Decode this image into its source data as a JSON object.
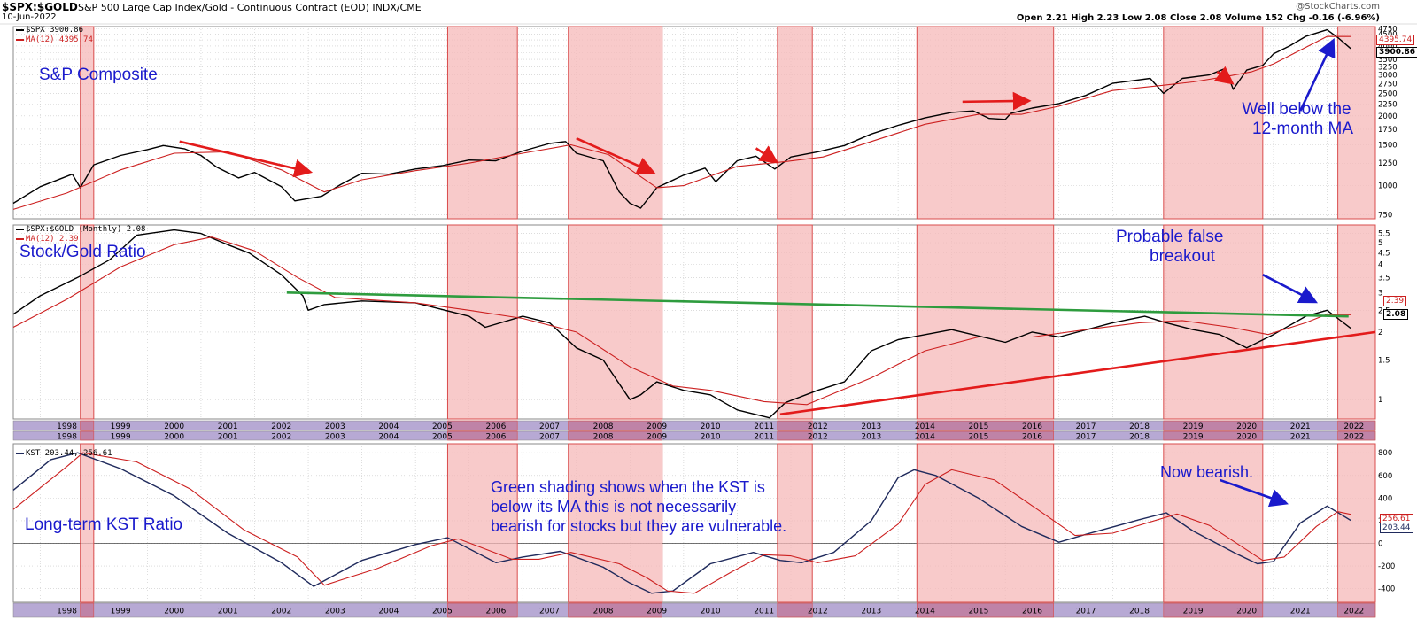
{
  "header": {
    "symbol": "$SPX:$GOLD",
    "description": "S&P 500 Large Cap Index/Gold - Continuous Contract (EOD)",
    "exchange": "INDX/CME",
    "date": "10-Jun-2022",
    "watermark": "@StockCharts.com",
    "quote": "Open 2.21  High 2.23  Low 2.08  Close 2.08  Volume 152  Chg -0.16 (-6.96%)"
  },
  "colors": {
    "shade": "#f6b8b8",
    "shade_border": "#d94c4c",
    "price": "#000000",
    "ma": "#cc1f1f",
    "kst": "#1f2a5c",
    "trend_green": "#2e9c3e",
    "trend_red": "#e31b1b",
    "arrow_red": "#e31b1b",
    "arrow_blue": "#1a1acc",
    "annotation_text": "#1a1acc",
    "axis_band": "#b7a9d4"
  },
  "annotations": {
    "sp_title": "S&P Composite",
    "ratio_title": "Stock/Gold Ratio",
    "kst_title": "Long-term KST Ratio",
    "well_below": [
      "Well below the",
      "12-month MA"
    ],
    "false_breakout": [
      "Probable false",
      "breakout"
    ],
    "green_shading": [
      "Green shading shows when the KST is",
      "below its MA this is not necessarily",
      "bearish for stocks but they are vulnerable."
    ],
    "now_bearish": "Now bearish."
  },
  "legends": {
    "p1_line": "$SPX 3900.86",
    "p1_ma": "MA(12) 4395.74",
    "p2_line": "$SPX:$GOLD (Monthly) 2.08",
    "p2_ma": "MA(12) 2.39",
    "p3_line": "KST 203.44, 256.61"
  },
  "value_tags": {
    "p1_ma": "4395.74",
    "p1_last": "3900.86",
    "p2_ma": "2.39",
    "p2_last": "2.08",
    "p3_ma": "256.61",
    "p3_last": "203.44"
  },
  "chart_data": [
    {
      "type": "line",
      "panel": "S&P Composite",
      "scale": "log",
      "ylim": [
        720,
        4850
      ],
      "yticks": [
        750,
        1000,
        1250,
        1500,
        1750,
        2000,
        2250,
        2500,
        2750,
        3000,
        3250,
        3500,
        3750,
        4000,
        4250,
        4500,
        4750
      ],
      "xlim": [
        1997.5,
        2022.9
      ],
      "series": [
        {
          "name": "$SPX",
          "x": [
            1997.5,
            1998.0,
            1998.6,
            1998.75,
            1999.0,
            1999.5,
            2000.0,
            2000.3,
            2000.7,
            2001.0,
            2001.3,
            2001.7,
            2002.0,
            2002.5,
            2002.75,
            2003.0,
            2003.25,
            2003.6,
            2004.0,
            2004.5,
            2005.0,
            2005.5,
            2006.0,
            2006.5,
            2007.0,
            2007.5,
            2007.8,
            2008.0,
            2008.5,
            2008.8,
            2009.0,
            2009.2,
            2009.5,
            2010.0,
            2010.4,
            2010.6,
            2011.0,
            2011.35,
            2011.7,
            2012.0,
            2012.5,
            2013.0,
            2013.5,
            2014.0,
            2014.5,
            2015.0,
            2015.4,
            2015.7,
            2016.0,
            2016.1,
            2016.5,
            2017.0,
            2017.5,
            2018.0,
            2018.7,
            2018.95,
            2019.3,
            2019.8,
            2020.1,
            2020.25,
            2020.5,
            2020.8,
            2021.0,
            2021.3,
            2021.6,
            2022.0,
            2022.2,
            2022.44
          ],
          "values": [
            840,
            990,
            1120,
            980,
            1230,
            1350,
            1430,
            1490,
            1440,
            1350,
            1200,
            1080,
            1140,
            990,
            860,
            880,
            900,
            1010,
            1130,
            1120,
            1180,
            1220,
            1290,
            1280,
            1410,
            1520,
            1550,
            1380,
            1280,
            940,
            840,
            800,
            980,
            1110,
            1190,
            1040,
            1280,
            1340,
            1180,
            1330,
            1400,
            1490,
            1670,
            1820,
            1960,
            2070,
            2100,
            1950,
            1930,
            2050,
            2160,
            2260,
            2450,
            2760,
            2900,
            2500,
            2900,
            3000,
            3200,
            2600,
            3150,
            3300,
            3700,
            4000,
            4400,
            4700,
            4350,
            3900
          ]
        },
        {
          "name": "MA(12)",
          "x": [
            1997.5,
            1998.5,
            1999.5,
            2000.5,
            2001.5,
            2002.5,
            2003.3,
            2004.0,
            2005.0,
            2006.0,
            2007.0,
            2007.9,
            2008.6,
            2009.5,
            2010.0,
            2011.0,
            2011.9,
            2012.6,
            2013.5,
            2014.5,
            2015.5,
            2016.3,
            2017.0,
            2018.0,
            2018.9,
            2019.5,
            2020.1,
            2020.6,
            2021.0,
            2022.0,
            2022.44
          ],
          "values": [
            790,
            930,
            1170,
            1380,
            1400,
            1170,
            940,
            1060,
            1160,
            1250,
            1380,
            1500,
            1360,
            980,
            1000,
            1210,
            1270,
            1330,
            1550,
            1840,
            2030,
            2030,
            2200,
            2570,
            2700,
            2800,
            2950,
            3100,
            3350,
            4400,
            4395.74
          ]
        }
      ]
    },
    {
      "type": "line",
      "panel": "Stock/Gold Ratio",
      "scale": "log",
      "ylim": [
        0.82,
        6.0
      ],
      "yticks": [
        1.0,
        1.5,
        2.0,
        2.5,
        3.0,
        3.5,
        4.0,
        4.5,
        5.0,
        5.5
      ],
      "xlim": [
        1997.5,
        2022.9
      ],
      "series": [
        {
          "name": "$SPX:$GOLD (Monthly)",
          "x": [
            1997.5,
            1998.0,
            1998.7,
            1999.3,
            1999.8,
            2000.5,
            2001.0,
            2001.5,
            2001.9,
            2002.5,
            2002.9,
            2003.0,
            2003.3,
            2004.0,
            2005.0,
            2006.0,
            2006.3,
            2007.0,
            2007.5,
            2008.0,
            2008.5,
            2009.0,
            2009.2,
            2009.5,
            2010.0,
            2010.5,
            2011.0,
            2011.6,
            2011.9,
            2012.5,
            2013.0,
            2013.5,
            2014.0,
            2015.0,
            2016.0,
            2016.5,
            2017.0,
            2018.0,
            2018.6,
            2019.0,
            2019.5,
            2020.0,
            2020.5,
            2021.0,
            2021.6,
            2022.0,
            2022.2,
            2022.44
          ],
          "values": [
            2.4,
            2.9,
            3.5,
            4.2,
            5.4,
            5.7,
            5.5,
            4.9,
            4.5,
            3.6,
            2.9,
            2.5,
            2.65,
            2.75,
            2.7,
            2.35,
            2.1,
            2.35,
            2.2,
            1.7,
            1.5,
            1.0,
            1.05,
            1.2,
            1.1,
            1.05,
            0.9,
            0.83,
            0.97,
            1.1,
            1.2,
            1.65,
            1.85,
            2.05,
            1.8,
            2.0,
            1.9,
            2.2,
            2.35,
            2.2,
            2.05,
            1.95,
            1.7,
            1.95,
            2.35,
            2.5,
            2.3,
            2.08
          ]
        },
        {
          "name": "MA(12)",
          "x": [
            1997.5,
            1998.5,
            1999.5,
            2000.5,
            2001.2,
            2002.0,
            2002.8,
            2003.5,
            2005.0,
            2006.0,
            2007.0,
            2008.0,
            2009.0,
            2009.8,
            2010.5,
            2011.5,
            2012.3,
            2013.5,
            2014.5,
            2015.5,
            2016.5,
            2017.5,
            2018.5,
            2019.3,
            2020.2,
            2020.9,
            2021.6,
            2022.0,
            2022.44
          ],
          "values": [
            2.1,
            2.8,
            3.9,
            4.9,
            5.3,
            4.6,
            3.5,
            2.85,
            2.7,
            2.5,
            2.3,
            2.0,
            1.4,
            1.15,
            1.1,
            0.98,
            0.95,
            1.25,
            1.65,
            1.9,
            1.9,
            2.05,
            2.2,
            2.25,
            2.1,
            1.95,
            2.2,
            2.4,
            2.39
          ]
        }
      ],
      "trendlines": [
        {
          "name": "green",
          "x": [
            2002.6,
            2022.4
          ],
          "values": [
            3.0,
            2.35
          ]
        },
        {
          "name": "red",
          "x": [
            2011.8,
            2022.9
          ],
          "values": [
            0.86,
            2.0
          ]
        }
      ]
    },
    {
      "type": "line",
      "panel": "Long-term KST Ratio",
      "scale": "linear",
      "ylim": [
        -520,
        880
      ],
      "yticks": [
        -400,
        -200,
        0,
        200,
        400,
        600,
        800
      ],
      "xlim": [
        1997.5,
        2022.9
      ],
      "series": [
        {
          "name": "KST",
          "x": [
            1997.5,
            1998.2,
            1998.7,
            1999.5,
            2000.5,
            2001.5,
            2002.5,
            2003.1,
            2004.0,
            2005.0,
            2005.6,
            2006.5,
            2007.0,
            2007.7,
            2008.5,
            2009.0,
            2009.4,
            2009.8,
            2010.5,
            2011.3,
            2011.8,
            2012.2,
            2012.8,
            2013.5,
            2014.0,
            2014.3,
            2014.7,
            2015.5,
            2016.3,
            2017.0,
            2017.5,
            2018.5,
            2019.0,
            2019.5,
            2020.3,
            2020.7,
            2021.0,
            2021.5,
            2022.0,
            2022.44
          ],
          "values": [
            470,
            740,
            800,
            660,
            420,
            90,
            -170,
            -380,
            -150,
            -10,
            50,
            -170,
            -120,
            -70,
            -210,
            -350,
            -440,
            -420,
            -180,
            -80,
            -150,
            -170,
            -80,
            200,
            580,
            650,
            600,
            400,
            150,
            10,
            80,
            210,
            270,
            110,
            -90,
            -180,
            -160,
            180,
            330,
            203.44
          ]
        },
        {
          "name": "MA",
          "x": [
            1997.5,
            1998.5,
            1998.8,
            1999.8,
            2000.8,
            2001.8,
            2002.8,
            2003.3,
            2004.3,
            2005.3,
            2005.8,
            2006.8,
            2007.3,
            2007.9,
            2008.8,
            2009.3,
            2009.7,
            2010.2,
            2010.9,
            2011.5,
            2012.0,
            2012.5,
            2013.2,
            2014.0,
            2014.5,
            2015.0,
            2015.8,
            2016.6,
            2017.3,
            2018.0,
            2019.2,
            2019.8,
            2020.8,
            2021.2,
            2021.8,
            2022.2,
            2022.44
          ],
          "values": [
            300,
            680,
            800,
            720,
            480,
            120,
            -120,
            -370,
            -220,
            -20,
            40,
            -140,
            -140,
            -80,
            -180,
            -300,
            -420,
            -440,
            -250,
            -100,
            -110,
            -170,
            -110,
            170,
            520,
            650,
            560,
            300,
            70,
            90,
            260,
            160,
            -150,
            -120,
            150,
            280,
            256.61
          ]
        }
      ]
    }
  ],
  "shaded_periods": [
    [
      1998.75,
      1999.0
    ],
    [
      2005.6,
      2006.9
    ],
    [
      2007.85,
      2009.6
    ],
    [
      2011.75,
      2012.4
    ],
    [
      2014.35,
      2016.9
    ],
    [
      2018.95,
      2020.8
    ],
    [
      2022.2,
      2022.9
    ]
  ],
  "year_labels": [
    "1998",
    "1999",
    "2000",
    "2001",
    "2002",
    "2003",
    "2004",
    "2005",
    "2006",
    "2007",
    "2008",
    "2009",
    "2010",
    "2011",
    "2012",
    "2013",
    "2014",
    "2015",
    "2016",
    "2017",
    "2018",
    "2019",
    "2020",
    "2021",
    "2022"
  ],
  "arrows": [
    {
      "color": "red",
      "from": [
        2000.6,
        1550
      ],
      "to": [
        2003.0,
        1150
      ],
      "panel": 0
    },
    {
      "color": "red",
      "from": [
        2008.0,
        1600
      ],
      "to": [
        2009.4,
        1150
      ],
      "panel": 0
    },
    {
      "color": "red",
      "from": [
        2011.35,
        1450
      ],
      "to": [
        2011.7,
        1280
      ],
      "panel": 0
    },
    {
      "color": "red",
      "from": [
        2015.2,
        2300
      ],
      "to": [
        2016.4,
        2320
      ],
      "panel": 0
    },
    {
      "color": "red",
      "from": [
        2019.95,
        3100
      ],
      "to": [
        2020.2,
        2800
      ],
      "panel": 0
    },
    {
      "color": "blue",
      "from": [
        2021.5,
        2100
      ],
      "to": [
        2022.1,
        4150
      ],
      "panel": 0
    },
    {
      "color": "blue",
      "from": [
        2020.8,
        3.6
      ],
      "to": [
        2021.75,
        2.75
      ],
      "panel": 1
    },
    {
      "color": "blue",
      "from": [
        2020.0,
        560
      ],
      "to": [
        2021.2,
        360
      ],
      "panel": 2
    }
  ]
}
